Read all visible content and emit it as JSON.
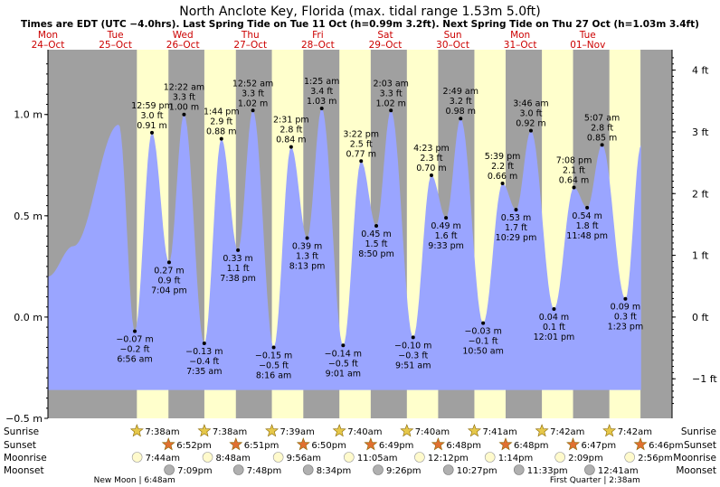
{
  "title": "North Anclote Key, Florida (max. tidal range 1.53m 5.0ft)",
  "subtitle": "Times are EDT (UTC −4.0hrs). Last Spring Tide on Tue 11 Oct (h=0.99m 3.2ft). Next Spring Tide on Thu 27 Oct (h=1.03m 3.4ft)",
  "colors": {
    "night": "#a0a0a0",
    "day": "#ffffcc",
    "water": "#9aa5ff",
    "date_label": "#cc0000",
    "moon_label": "#000000"
  },
  "day_headers": [
    {
      "dow": "Mon",
      "date": "24–Oct"
    },
    {
      "dow": "Tue",
      "date": "25–Oct"
    },
    {
      "dow": "Wed",
      "date": "26–Oct"
    },
    {
      "dow": "Thu",
      "date": "27–Oct"
    },
    {
      "dow": "Fri",
      "date": "28–Oct"
    },
    {
      "dow": "Sat",
      "date": "29–Oct"
    },
    {
      "dow": "Sun",
      "date": "30–Oct"
    },
    {
      "dow": "Mon",
      "date": "31–Oct"
    },
    {
      "dow": "Tue",
      "date": "01–Nov"
    }
  ],
  "chart_data": {
    "type": "area",
    "title": "North Anclote Key, Florida (max. tidal range 1.53m 5.0ft)",
    "y_left_unit": "m",
    "y_left_ticks": [
      "1.0 m",
      "0.5 m",
      "0.0 m",
      "−0.5 m"
    ],
    "y_left_values": [
      1.0,
      0.5,
      0.0,
      -0.5
    ],
    "y_right_ticks": [
      "4 ft",
      "3 ft",
      "2 ft",
      "1 ft",
      "0 ft",
      "−1 ft"
    ],
    "y_right_values_ft": [
      4,
      3,
      2,
      1,
      0,
      -1
    ],
    "ylim_m": [
      -0.5,
      1.32
    ],
    "x_range_hours": [
      0,
      222
    ],
    "grid": false,
    "tides": [
      {
        "t": "6:56 am",
        "h_m": "−0.07 m",
        "h_ft": "−0.2 ft",
        "hours": 30.9,
        "m": -0.07,
        "type": "low"
      },
      {
        "t": "12:59 pm",
        "h_m": "0.91 m",
        "h_ft": "3.0 ft",
        "hours": 37.0,
        "m": 0.91,
        "type": "high"
      },
      {
        "t": "7:04 pm",
        "h_m": "0.27 m",
        "h_ft": "0.9 ft",
        "hours": 43.1,
        "m": 0.27,
        "type": "low"
      },
      {
        "t": "12:22 am",
        "h_m": "1.00 m",
        "h_ft": "3.3 ft",
        "hours": 48.4,
        "m": 1.0,
        "type": "high"
      },
      {
        "t": "7:35 am",
        "h_m": "−0.13 m",
        "h_ft": "−0.4 ft",
        "hours": 55.6,
        "m": -0.13,
        "type": "low"
      },
      {
        "t": "1:44 pm",
        "h_m": "0.88 m",
        "h_ft": "2.9 ft",
        "hours": 61.7,
        "m": 0.88,
        "type": "high"
      },
      {
        "t": "7:38 pm",
        "h_m": "0.33 m",
        "h_ft": "1.1 ft",
        "hours": 67.6,
        "m": 0.33,
        "type": "low"
      },
      {
        "t": "12:52 am",
        "h_m": "1.02 m",
        "h_ft": "3.3 ft",
        "hours": 72.9,
        "m": 1.02,
        "type": "high"
      },
      {
        "t": "8:16 am",
        "h_m": "−0.15 m",
        "h_ft": "−0.5 ft",
        "hours": 80.3,
        "m": -0.15,
        "type": "low"
      },
      {
        "t": "2:31 pm",
        "h_m": "0.84 m",
        "h_ft": "2.8 ft",
        "hours": 86.5,
        "m": 0.84,
        "type": "high"
      },
      {
        "t": "8:13 pm",
        "h_m": "0.39 m",
        "h_ft": "1.3 ft",
        "hours": 92.2,
        "m": 0.39,
        "type": "low"
      },
      {
        "t": "1:25 am",
        "h_m": "1.03 m",
        "h_ft": "3.4 ft",
        "hours": 97.4,
        "m": 1.03,
        "type": "high"
      },
      {
        "t": "9:01 am",
        "h_m": "−0.14 m",
        "h_ft": "−0.5 ft",
        "hours": 105.0,
        "m": -0.14,
        "type": "low"
      },
      {
        "t": "3:22 pm",
        "h_m": "0.77 m",
        "h_ft": "2.5 ft",
        "hours": 111.4,
        "m": 0.77,
        "type": "high"
      },
      {
        "t": "8:50 pm",
        "h_m": "0.45 m",
        "h_ft": "1.5 ft",
        "hours": 116.8,
        "m": 0.45,
        "type": "low"
      },
      {
        "t": "2:03 am",
        "h_m": "1.02 m",
        "h_ft": "3.3 ft",
        "hours": 122.0,
        "m": 1.02,
        "type": "high"
      },
      {
        "t": "9:51 am",
        "h_m": "−0.10 m",
        "h_ft": "−0.3 ft",
        "hours": 129.9,
        "m": -0.1,
        "type": "low"
      },
      {
        "t": "4:23 pm",
        "h_m": "0.70 m",
        "h_ft": "2.3 ft",
        "hours": 136.4,
        "m": 0.7,
        "type": "high"
      },
      {
        "t": "9:33 pm",
        "h_m": "0.49 m",
        "h_ft": "1.6 ft",
        "hours": 141.6,
        "m": 0.49,
        "type": "low"
      },
      {
        "t": "2:49 am",
        "h_m": "0.98 m",
        "h_ft": "3.2 ft",
        "hours": 146.8,
        "m": 0.98,
        "type": "high"
      },
      {
        "t": "10:50 am",
        "h_m": "−0.03 m",
        "h_ft": "−0.1 ft",
        "hours": 154.8,
        "m": -0.03,
        "type": "low"
      },
      {
        "t": "5:39 pm",
        "h_m": "0.66 m",
        "h_ft": "2.2 ft",
        "hours": 161.7,
        "m": 0.66,
        "type": "high"
      },
      {
        "t": "10:29 pm",
        "h_m": "0.53 m",
        "h_ft": "1.7 ft",
        "hours": 166.5,
        "m": 0.53,
        "type": "low"
      },
      {
        "t": "3:46 am",
        "h_m": "0.92 m",
        "h_ft": "3.0 ft",
        "hours": 171.8,
        "m": 0.92,
        "type": "high"
      },
      {
        "t": "12:01 pm",
        "h_m": "0.04 m",
        "h_ft": "0.1 ft",
        "hours": 180.0,
        "m": 0.04,
        "type": "low"
      },
      {
        "t": "7:08 pm",
        "h_m": "0.64 m",
        "h_ft": "2.1 ft",
        "hours": 187.1,
        "m": 0.64,
        "type": "high"
      },
      {
        "t": "11:48 pm",
        "h_m": "0.54 m",
        "h_ft": "1.8 ft",
        "hours": 191.8,
        "m": 0.54,
        "type": "low"
      },
      {
        "t": "5:07 am",
        "h_m": "0.85 m",
        "h_ft": "2.8 ft",
        "hours": 197.1,
        "m": 0.85,
        "type": "high"
      },
      {
        "t": "1:23 pm",
        "h_m": "0.09 m",
        "h_ft": "0.3 ft",
        "hours": 205.4,
        "m": 0.09,
        "type": "low"
      }
    ]
  },
  "sun_moon": {
    "row_labels": [
      "Sunrise",
      "Sunset",
      "Moonrise",
      "Moonset"
    ],
    "sunrise": [
      "7:38am",
      "7:38am",
      "7:39am",
      "7:40am",
      "7:40am",
      "7:41am",
      "7:42am",
      "7:42am"
    ],
    "sunset": [
      "6:52pm",
      "6:51pm",
      "6:50pm",
      "6:49pm",
      "6:48pm",
      "6:48pm",
      "6:47pm",
      "6:46pm"
    ],
    "moonrise": [
      "7:44am",
      "8:48am",
      "9:56am",
      "11:05am",
      "12:12pm",
      "1:14pm",
      "2:09pm",
      "2:56pm"
    ],
    "moonset": [
      "7:09pm",
      "7:48pm",
      "8:34pm",
      "9:26pm",
      "10:27pm",
      "11:33pm",
      "12:41am"
    ],
    "moon_phases": [
      {
        "label": "New Moon | 6:48am"
      },
      {
        "label": "First Quarter | 2:38am"
      }
    ]
  }
}
